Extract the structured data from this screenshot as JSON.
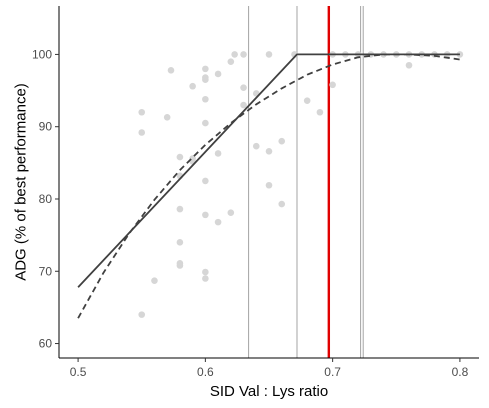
{
  "chart_data": {
    "type": "scatter",
    "xlabel": "SID Val : Lys ratio",
    "ylabel": "ADG (% of best performance)",
    "xlim": [
      0.485,
      0.815
    ],
    "ylim": [
      58.0,
      106.7
    ],
    "xticks": [
      0.5,
      0.6,
      0.7,
      0.8
    ],
    "xtick_labels": [
      "0.5",
      "0.6",
      "0.7",
      "0.8"
    ],
    "yticks": [
      60,
      70,
      80,
      90,
      100
    ],
    "ytick_labels": [
      "60",
      "70",
      "80",
      "90",
      "100"
    ],
    "grid": false,
    "legend": "none",
    "colors": {
      "points": "#d6d6d6",
      "fit_lines": "#404040",
      "reference_lines": "#9a9a9a",
      "highlight_line": "#e00000",
      "axis": "#000000"
    },
    "points": [
      {
        "x": 0.55,
        "y": 92.0
      },
      {
        "x": 0.55,
        "y": 89.2
      },
      {
        "x": 0.55,
        "y": 64.0
      },
      {
        "x": 0.56,
        "y": 68.7
      },
      {
        "x": 0.57,
        "y": 91.3
      },
      {
        "x": 0.573,
        "y": 97.8
      },
      {
        "x": 0.58,
        "y": 85.8
      },
      {
        "x": 0.58,
        "y": 83.2
      },
      {
        "x": 0.58,
        "y": 78.6
      },
      {
        "x": 0.58,
        "y": 74.0
      },
      {
        "x": 0.58,
        "y": 71.1
      },
      {
        "x": 0.58,
        "y": 70.8
      },
      {
        "x": 0.59,
        "y": 95.6
      },
      {
        "x": 0.59,
        "y": 85.6
      },
      {
        "x": 0.59,
        "y": 85.2
      },
      {
        "x": 0.6,
        "y": 98.0
      },
      {
        "x": 0.6,
        "y": 96.8
      },
      {
        "x": 0.6,
        "y": 96.5
      },
      {
        "x": 0.6,
        "y": 93.8
      },
      {
        "x": 0.6,
        "y": 90.5
      },
      {
        "x": 0.6,
        "y": 82.5
      },
      {
        "x": 0.6,
        "y": 77.8
      },
      {
        "x": 0.6,
        "y": 69.9
      },
      {
        "x": 0.6,
        "y": 69.0
      },
      {
        "x": 0.61,
        "y": 97.3
      },
      {
        "x": 0.61,
        "y": 86.3
      },
      {
        "x": 0.61,
        "y": 76.8
      },
      {
        "x": 0.62,
        "y": 99.0
      },
      {
        "x": 0.62,
        "y": 78.1
      },
      {
        "x": 0.623,
        "y": 100.0
      },
      {
        "x": 0.63,
        "y": 100.0
      },
      {
        "x": 0.63,
        "y": 95.4
      },
      {
        "x": 0.63,
        "y": 93.0
      },
      {
        "x": 0.64,
        "y": 94.6
      },
      {
        "x": 0.64,
        "y": 87.3
      },
      {
        "x": 0.65,
        "y": 100.0
      },
      {
        "x": 0.65,
        "y": 86.6
      },
      {
        "x": 0.65,
        "y": 81.9
      },
      {
        "x": 0.66,
        "y": 88.0
      },
      {
        "x": 0.66,
        "y": 79.3
      },
      {
        "x": 0.67,
        "y": 100.0
      },
      {
        "x": 0.68,
        "y": 93.6
      },
      {
        "x": 0.69,
        "y": 92.0
      },
      {
        "x": 0.7,
        "y": 100.0
      },
      {
        "x": 0.7,
        "y": 95.8
      },
      {
        "x": 0.71,
        "y": 100.0
      },
      {
        "x": 0.72,
        "y": 100.0
      },
      {
        "x": 0.73,
        "y": 100.0
      },
      {
        "x": 0.74,
        "y": 100.0
      },
      {
        "x": 0.75,
        "y": 100.0
      },
      {
        "x": 0.76,
        "y": 100.0
      },
      {
        "x": 0.76,
        "y": 98.5
      },
      {
        "x": 0.77,
        "y": 100.0
      },
      {
        "x": 0.78,
        "y": 100.0
      },
      {
        "x": 0.79,
        "y": 100.0
      },
      {
        "x": 0.8,
        "y": 100.0
      }
    ],
    "series": [
      {
        "style": "solid",
        "x": [
          0.5,
          0.672,
          0.8
        ],
        "y": [
          67.8,
          100.0,
          100.0
        ]
      },
      {
        "style": "dashed",
        "x": [
          0.5,
          0.52,
          0.54,
          0.56,
          0.58,
          0.6,
          0.62,
          0.64,
          0.66,
          0.68,
          0.7,
          0.72,
          0.74,
          0.76,
          0.78,
          0.8
        ],
        "y": [
          63.5,
          69.8,
          75.2,
          79.9,
          84.0,
          87.5,
          90.5,
          93.1,
          95.3,
          97.2,
          98.6,
          99.6,
          100.0,
          100.0,
          99.8,
          99.3
        ]
      }
    ],
    "reference_lines": [
      {
        "x": 0.634,
        "style": "thin-gray"
      },
      {
        "x": 0.672,
        "style": "thin-gray"
      },
      {
        "x": 0.697,
        "style": "thick-red"
      },
      {
        "x": 0.722,
        "style": "thin-gray"
      },
      {
        "x": 0.724,
        "style": "thin-gray"
      }
    ]
  }
}
